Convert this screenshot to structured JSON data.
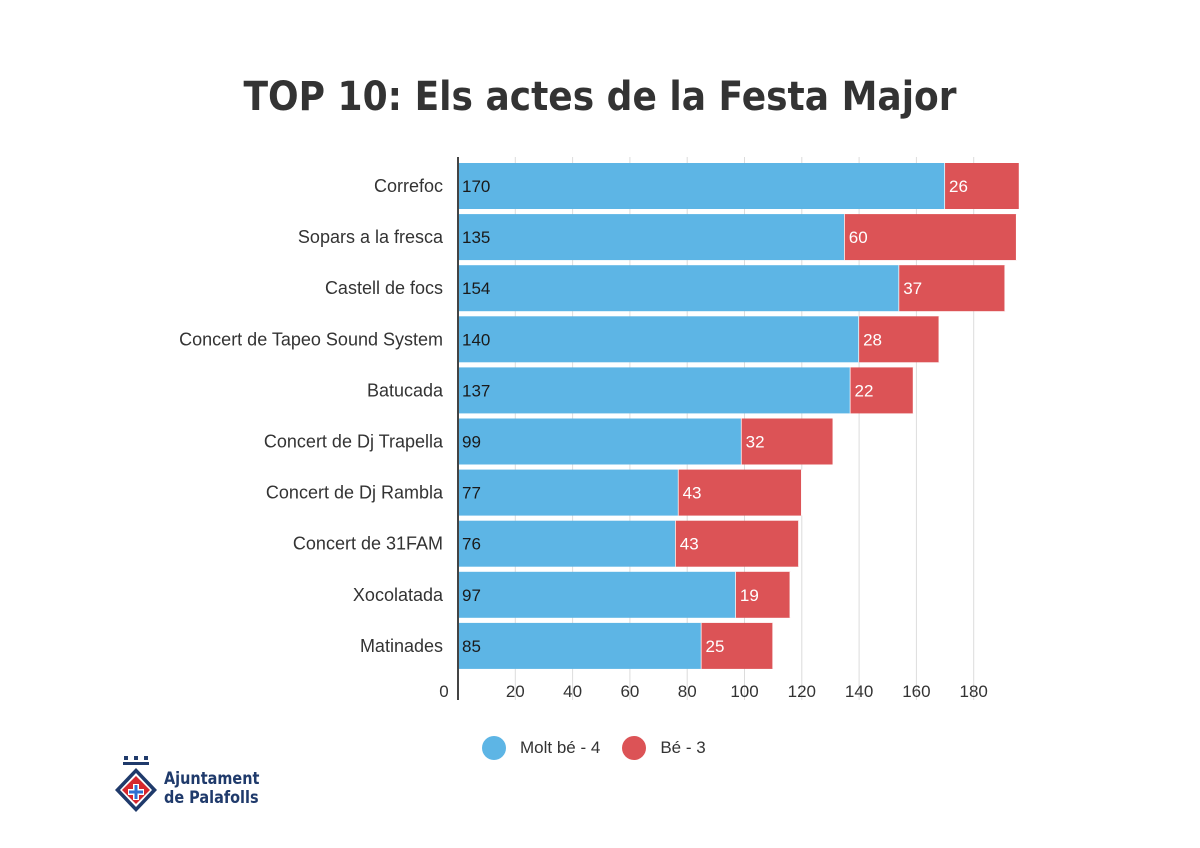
{
  "title": "TOP 10: Els actes de la Festa Major",
  "chart_data": {
    "type": "bar",
    "orientation": "horizontal",
    "stacked": true,
    "categories": [
      "Correfoc",
      "Sopars a la fresca",
      "Castell de focs",
      "Concert de Tapeo Sound System",
      "Batucada",
      "Concert de Dj Trapella",
      "Concert de Dj Rambla",
      "Concert de 31FAM",
      "Xocolatada",
      "Matinades"
    ],
    "series": [
      {
        "name": "Molt bé - 4",
        "color": "#5db5e5",
        "label_color": "#1a1a1a",
        "values": [
          170,
          135,
          154,
          140,
          137,
          99,
          77,
          76,
          97,
          85
        ]
      },
      {
        "name": "Bé - 3",
        "color": "#dc5356",
        "label_color": "#ffffff",
        "values": [
          26,
          60,
          37,
          28,
          22,
          32,
          43,
          43,
          19,
          25
        ]
      }
    ],
    "xticks": [
      "0",
      "20",
      "40",
      "60",
      "80",
      "100",
      "120",
      "140",
      "160",
      "180"
    ],
    "xlim": [
      0,
      200
    ],
    "grid": true,
    "legend_position": "bottom"
  },
  "logo": {
    "line1": "Ajuntament",
    "line2": "de Palafolls"
  }
}
